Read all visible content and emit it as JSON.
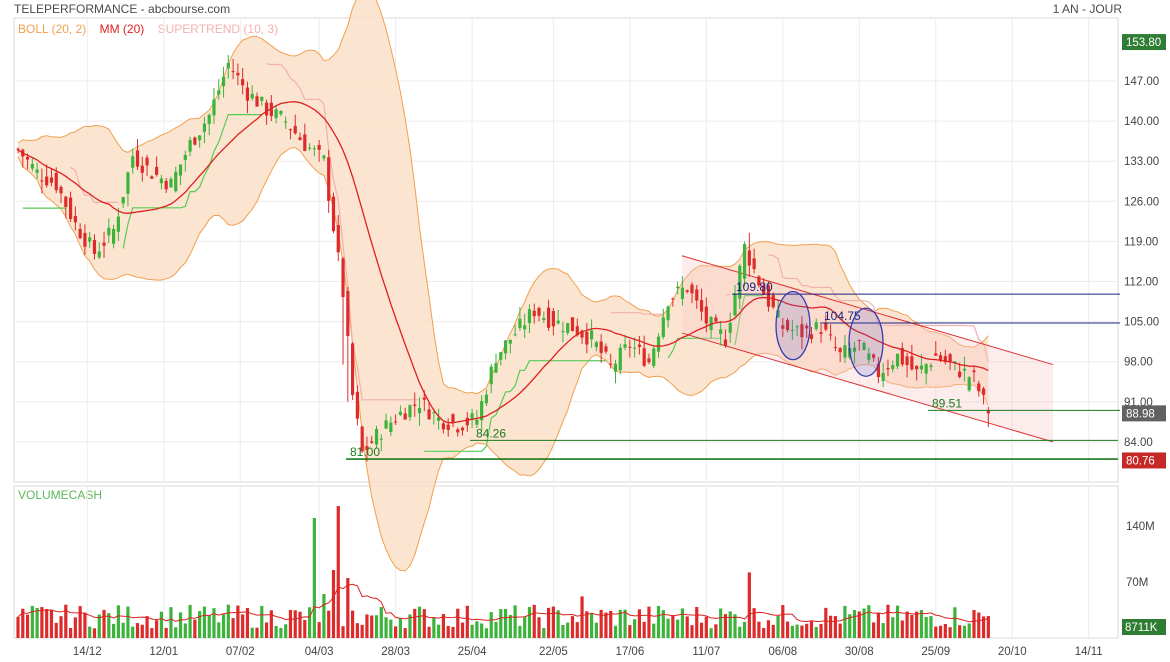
{
  "header": {
    "title": "TELEPERFORMANCE - abcbourse.com",
    "period": "1 AN - JOUR"
  },
  "legend": {
    "boll": "BOLL (20, 2)",
    "mm": "MM (20)",
    "supertrend": "SUPERTREND (10, 3)",
    "volume": "VOLUMECASH"
  },
  "colors": {
    "up": "#3cb43c",
    "down": "#dd2b2b",
    "boll_fill": "#fbe0c8",
    "boll_line": "#f0a050",
    "mm": "#dd2020",
    "supertrend_bull": "#55cc55",
    "supertrend_bear": "#f0b0b0",
    "hline_blue": "#1a237e",
    "hline_green": "#1b7a1b",
    "tag_green": "#2e7d32",
    "tag_red": "#c62828",
    "tag_gray": "#616161",
    "channel": "#dd3333"
  },
  "chart_data": {
    "type": "candlestick",
    "y_ticks": [
      "147.00",
      "140.00",
      "133.00",
      "126.00",
      "119.00",
      "112.00",
      "105.00",
      "98.00",
      "91.00",
      "84.00"
    ],
    "ylim": [
      77,
      158
    ],
    "x_ticks": [
      "14/12",
      "12/01",
      "07/02",
      "04/03",
      "28/03",
      "25/04",
      "22/05",
      "17/06",
      "11/07",
      "06/08",
      "30/08",
      "25/09",
      "20/10",
      "14/11"
    ],
    "price_tags": [
      {
        "label": "153.80",
        "value": 153.8,
        "color": "tag_green"
      },
      {
        "label": "88.98",
        "value": 88.98,
        "color": "tag_gray"
      },
      {
        "label": "80.76",
        "value": 80.76,
        "color": "tag_red"
      }
    ],
    "horizontal_lines": [
      {
        "label": "109.80",
        "value": 109.8,
        "color": "hline_blue"
      },
      {
        "label": "104.75",
        "value": 104.75,
        "color": "hline_blue"
      },
      {
        "label": "89.51",
        "value": 89.51,
        "color": "hline_green"
      },
      {
        "label": "84.26",
        "value": 84.26,
        "color": "hline_green"
      },
      {
        "label": "81.00",
        "value": 81.0,
        "color": "hline_green"
      }
    ],
    "trend_channel": {
      "upper": [
        [
          "~mid-juin",
          116.5
        ],
        [
          "~mi-oct.",
          97.5
        ]
      ],
      "lower": [
        [
          "~mid-juin",
          103.0
        ],
        [
          "~mi-oct.",
          84.0
        ]
      ]
    },
    "close_path": [
      [
        0,
        135
      ],
      [
        4,
        131
      ],
      [
        8,
        129
      ],
      [
        12,
        122
      ],
      [
        16,
        117
      ],
      [
        20,
        121
      ],
      [
        24,
        134
      ],
      [
        28,
        131
      ],
      [
        32,
        129
      ],
      [
        36,
        136
      ],
      [
        40,
        141
      ],
      [
        44,
        150
      ],
      [
        48,
        145
      ],
      [
        52,
        142
      ],
      [
        56,
        140
      ],
      [
        60,
        136
      ],
      [
        64,
        133
      ],
      [
        68,
        110
      ],
      [
        70,
        92
      ],
      [
        72,
        82
      ],
      [
        76,
        86
      ],
      [
        80,
        89
      ],
      [
        84,
        91
      ],
      [
        88,
        88
      ],
      [
        92,
        87
      ],
      [
        96,
        88
      ],
      [
        100,
        99
      ],
      [
        104,
        103
      ],
      [
        108,
        107
      ],
      [
        112,
        105
      ],
      [
        116,
        104
      ],
      [
        120,
        102
      ],
      [
        124,
        97
      ],
      [
        128,
        101
      ],
      [
        132,
        98
      ],
      [
        136,
        109
      ],
      [
        140,
        111
      ],
      [
        144,
        105
      ],
      [
        148,
        102
      ],
      [
        152,
        118
      ],
      [
        156,
        110
      ],
      [
        160,
        104
      ],
      [
        164,
        103
      ],
      [
        168,
        104
      ],
      [
        172,
        99
      ],
      [
        176,
        101
      ],
      [
        180,
        96
      ],
      [
        184,
        99
      ],
      [
        188,
        96
      ],
      [
        192,
        99
      ],
      [
        196,
        97
      ],
      [
        200,
        95
      ],
      [
        203,
        88.98
      ]
    ],
    "volume": {
      "y_ticks": [
        "140M",
        "70M"
      ],
      "ylim": [
        0,
        190
      ],
      "last_tag": "8711K"
    }
  }
}
